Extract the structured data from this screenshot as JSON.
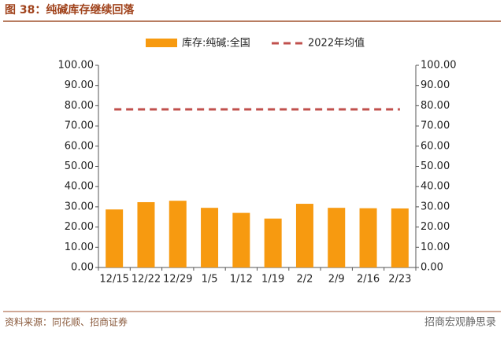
{
  "chart_data": {
    "type": "bar",
    "title": "图 38：纯碱库存继续回落",
    "source": "资料来源：同花顺、招商证券",
    "watermark": "招商宏观静思录",
    "categories": [
      "12/15",
      "12/22",
      "12/29",
      "1/5",
      "1/12",
      "1/19",
      "2/2",
      "2/9",
      "2/16",
      "2/23"
    ],
    "series": [
      {
        "name": "库存:纯碱:全国",
        "type": "bar",
        "color": "#f79a10",
        "values": [
          28.7,
          32.3,
          33.0,
          29.5,
          27.0,
          24.2,
          31.5,
          29.5,
          29.3,
          29.2
        ]
      },
      {
        "name": "2022年均值",
        "type": "line",
        "dashed": true,
        "color": "#c0504d",
        "values": [
          78.2,
          78.2,
          78.2,
          78.2,
          78.2,
          78.2,
          78.2,
          78.2,
          78.2,
          78.2
        ]
      }
    ],
    "ylim": [
      0,
      100
    ],
    "yticks": [
      {
        "value": 0,
        "label": "0.00"
      },
      {
        "value": 10,
        "label": "10.00"
      },
      {
        "value": 20,
        "label": "20.00"
      },
      {
        "value": 30,
        "label": "30.00"
      },
      {
        "value": 40,
        "label": "40.00"
      },
      {
        "value": 50,
        "label": "50.00"
      },
      {
        "value": 60,
        "label": "60.00"
      },
      {
        "value": 70,
        "label": "70.00"
      },
      {
        "value": 80,
        "label": "80.00"
      },
      {
        "value": 90,
        "label": "90.00"
      },
      {
        "value": 100,
        "label": "100.00"
      }
    ],
    "y2lim": [
      0,
      100
    ],
    "y2ticks": [
      {
        "value": 0,
        "label": "0.00"
      },
      {
        "value": 10,
        "label": "10.00"
      },
      {
        "value": 20,
        "label": "20.00"
      },
      {
        "value": 30,
        "label": "30.00"
      },
      {
        "value": 40,
        "label": "40.00"
      },
      {
        "value": 50,
        "label": "50.00"
      },
      {
        "value": 60,
        "label": "60.00"
      },
      {
        "value": 70,
        "label": "70.00"
      },
      {
        "value": 80,
        "label": "80.00"
      },
      {
        "value": 90,
        "label": "90.00"
      },
      {
        "value": 100,
        "label": "100.00"
      }
    ],
    "grid": false,
    "legend": "top"
  }
}
